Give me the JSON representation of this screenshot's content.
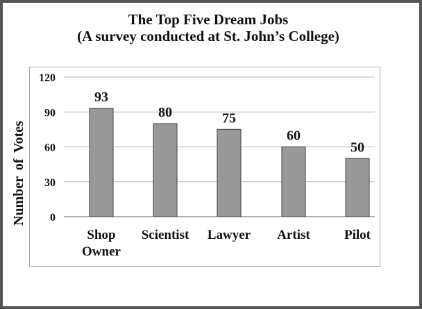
{
  "chart_data": {
    "type": "bar",
    "title": "The Top Five Dream Jobs",
    "subtitle": "(A survey conducted at St. John’s College)",
    "ylabel": "Number of Votes",
    "xlabel": "",
    "categories": [
      "Shop Owner",
      "Scientist",
      "Lawyer",
      "Artist",
      "Pilot"
    ],
    "category_label_lines": [
      [
        "Shop",
        "Owner"
      ],
      [
        "Scientist"
      ],
      [
        "Lawyer"
      ],
      [
        "Artist"
      ],
      [
        "Pilot"
      ]
    ],
    "values": [
      93,
      80,
      75,
      60,
      50
    ],
    "data_labels": [
      "93",
      "80",
      "75",
      "60",
      "50"
    ],
    "ylim": [
      0,
      120
    ],
    "yticks": [
      0,
      30,
      60,
      90,
      120
    ],
    "grid": true,
    "bar_color": "#999999",
    "bar_edge_color": "#555555"
  }
}
